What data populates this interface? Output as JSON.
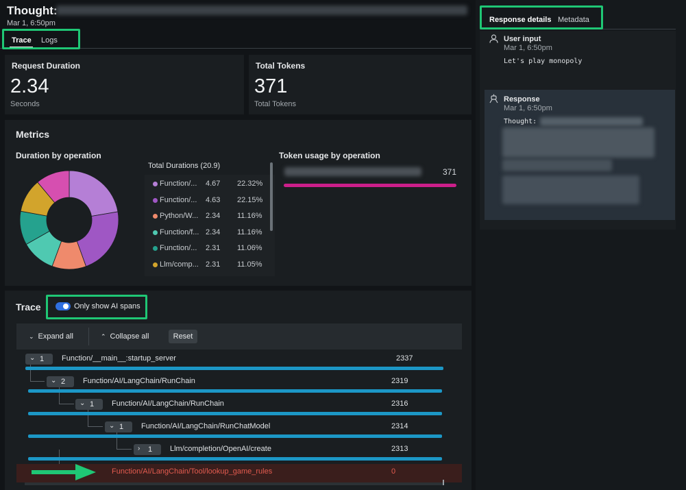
{
  "header": {
    "title": "Thought:",
    "timestamp": "Mar 1, 6:50pm"
  },
  "tabs": [
    {
      "label": "Trace"
    },
    {
      "label": "Logs"
    }
  ],
  "stats": {
    "request_duration": {
      "label": "Request Duration",
      "value": "2.34",
      "unit": "Seconds"
    },
    "total_tokens": {
      "label": "Total Tokens",
      "value": "371",
      "unit": "Total Tokens"
    }
  },
  "metrics": {
    "title": "Metrics",
    "duration_title": "Duration by operation",
    "legend_title": "Total Durations (20.9)",
    "legend": [
      {
        "name": "Function/...",
        "value": "4.67",
        "percent": "22.32%",
        "color": "#b57fd6"
      },
      {
        "name": "Function/...",
        "value": "4.63",
        "percent": "22.15%",
        "color": "#9f57c4"
      },
      {
        "name": "Python/W...",
        "value": "2.34",
        "percent": "11.16%",
        "color": "#ef8a6c"
      },
      {
        "name": "Function/f...",
        "value": "2.34",
        "percent": "11.16%",
        "color": "#4fc9b1"
      },
      {
        "name": "Function/...",
        "value": "2.31",
        "percent": "11.06%",
        "color": "#25a28e"
      },
      {
        "name": "Llm/comp...",
        "value": "2.31",
        "percent": "11.05%",
        "color": "#d2a42c"
      }
    ],
    "token_title": "Token usage by operation",
    "token_value": "371",
    "token_bar_fraction": 1.0,
    "token_bar_color": "#cc1f8a"
  },
  "chart_data": {
    "type": "pie",
    "title": "Duration by operation",
    "categories": [
      "Function/...",
      "Function/...",
      "Python/W...",
      "Function/f...",
      "Function/...",
      "Llm/comp...",
      "(unlabeled)"
    ],
    "values": [
      22.32,
      22.15,
      11.16,
      11.16,
      11.06,
      11.05,
      11.1
    ],
    "colors": [
      "#b57fd6",
      "#9f57c4",
      "#ef8a6c",
      "#4fc9b1",
      "#25a28e",
      "#d2a42c",
      "#d64fb0"
    ]
  },
  "trace": {
    "title": "Trace",
    "toggle_label": "Only show AI spans",
    "toggle_on": true,
    "expand_label": "Expand all",
    "collapse_label": "Collapse all",
    "reset_label": "Reset",
    "spans": [
      {
        "count": "1",
        "name": "Function/__main__:startup_server",
        "value": "2337",
        "bar_fraction": 1.0
      },
      {
        "count": "2",
        "name": "Function/AI/LangChain/RunChain",
        "value": "2319",
        "bar_fraction": 1.0
      },
      {
        "count": "1",
        "name": "Function/AI/LangChain/RunChain",
        "value": "2316",
        "bar_fraction": 1.0
      },
      {
        "count": "1",
        "name": "Function/AI/LangChain/RunChatModel",
        "value": "2314",
        "bar_fraction": 1.0
      },
      {
        "count": "1",
        "name": "Llm/completion/OpenAI/create",
        "value": "2313",
        "bar_fraction": 1.0
      },
      {
        "count": "",
        "name": "Function/AI/LangChain/Tool/lookup_game_rules",
        "value": "0",
        "bar_fraction": 0.0
      }
    ]
  },
  "side": {
    "tabs": [
      {
        "label": "Response details"
      },
      {
        "label": "Metadata"
      }
    ],
    "user_input": {
      "label": "User input",
      "timestamp": "Mar 1, 6:50pm",
      "message": "Let's play monopoly"
    },
    "response": {
      "label": "Response",
      "timestamp": "Mar 1, 6:50pm",
      "text": "Thought:"
    }
  },
  "colors": {
    "accent_green": "#1fc775",
    "span_bar": "#1c97c6",
    "error_text": "#e35b4f",
    "toggle_blue": "#2f6fe0"
  }
}
